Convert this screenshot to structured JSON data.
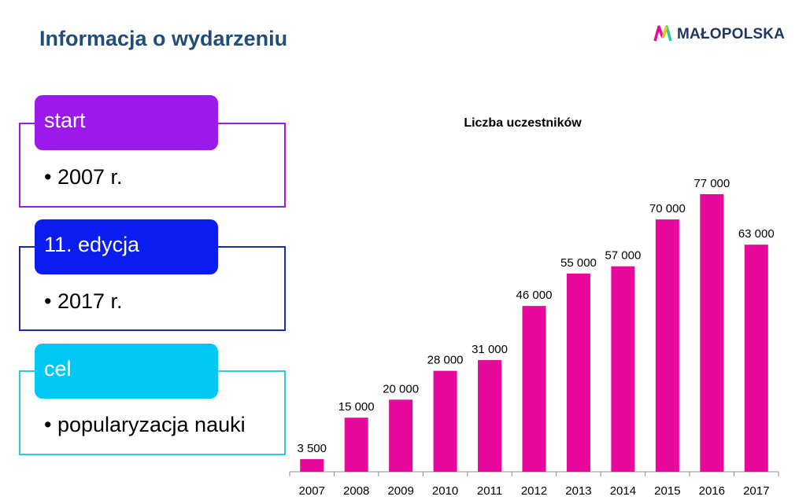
{
  "header": {
    "title": "Informacja o wydarzeniu",
    "logo_text": "MAŁOPOLSKA"
  },
  "cards": [
    {
      "label": "start",
      "bullet": "• 2007 r.",
      "color": "#9b1aea",
      "frame_color": "#9b1aea"
    },
    {
      "label": "11. edycja",
      "bullet": "• 2017 r.",
      "color": "#0a1dee",
      "frame_color": "#1a2aa8"
    },
    {
      "label": "cel",
      "bullet": "• popularyzacja nauki",
      "color": "#00c8f5",
      "frame_color": "#2ec8de"
    }
  ],
  "chart_data": {
    "type": "bar",
    "title": "Liczba uczestników",
    "categories": [
      "2007",
      "2008",
      "2009",
      "2010",
      "2011",
      "2012",
      "2013",
      "2014",
      "2015",
      "2016",
      "2017"
    ],
    "values": [
      3500,
      15000,
      20000,
      28000,
      31000,
      46000,
      55000,
      57000,
      70000,
      77000,
      63000
    ],
    "data_labels": [
      "3 500",
      "15 000",
      "20 000",
      "28 000",
      "31 000",
      "46 000",
      "55 000",
      "57 000",
      "70 000",
      "77 000",
      "63 000"
    ],
    "ylim": [
      0,
      77000
    ],
    "bar_color": "#e8099c",
    "grid": false,
    "legend": "none",
    "y_axis_visible": false
  }
}
